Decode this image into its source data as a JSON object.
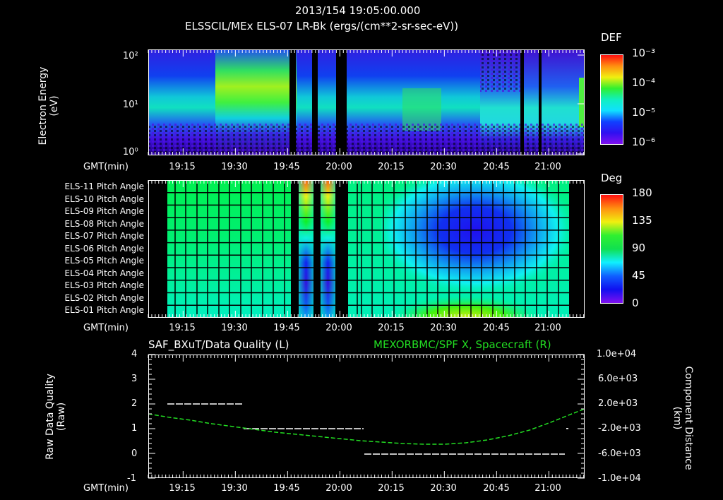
{
  "header": {
    "datetime": "2013/154 19:05:00.000",
    "panel1_title": "ELSSCIL/MEx ELS-07 LR-Bk  (ergs/(cm**2-sr-sec-eV))"
  },
  "panel1": {
    "ylabel": "Electron Energy",
    "yunit": "(eV)",
    "yticks": [
      "10²",
      "10¹",
      "10⁰"
    ],
    "xlabel": "GMT(min)",
    "xticks": [
      "19:15",
      "19:30",
      "19:45",
      "20:00",
      "20:15",
      "20:30",
      "20:45",
      "21:00"
    ],
    "colorbar": {
      "title": "DEF",
      "labels": [
        "10⁻³",
        "10⁻⁴",
        "10⁻⁵",
        "10⁻⁶"
      ]
    }
  },
  "panel2": {
    "rows": [
      "ELS-11 Pitch Angle",
      "ELS-10 Pitch Angle",
      "ELS-09 Pitch Angle",
      "ELS-08 Pitch Angle",
      "ELS-07 Pitch Angle",
      "ELS-06 Pitch Angle",
      "ELS-05 Pitch Angle",
      "ELS-04 Pitch Angle",
      "ELS-03 Pitch Angle",
      "ELS-02 Pitch Angle",
      "ELS-01 Pitch Angle"
    ],
    "xlabel": "GMT(min)",
    "xticks": [
      "19:15",
      "19:30",
      "19:45",
      "20:00",
      "20:15",
      "20:30",
      "20:45",
      "21:00"
    ],
    "colorbar": {
      "title": "Deg",
      "labels": [
        "180",
        "135",
        "90",
        "45",
        "0"
      ]
    }
  },
  "panel3": {
    "left_title": "SAF_BXuT/Data Quality (L)",
    "right_title": "MEXORBMC/SPF X, Spacecraft (R)",
    "right_title_color": "#22dd22",
    "ylabel_left": "Raw Data Quality",
    "yunit_left": "(Raw)",
    "ylabel_right": "Component Distance",
    "yunit_right": "(km)",
    "yticks_left": [
      "4",
      "3",
      "2",
      "1",
      "0",
      "-1"
    ],
    "yticks_right": [
      "1.0e+04",
      "6.0e+03",
      "2.0e+03",
      "-2.0e+03",
      "-6.0e+03",
      "-1.0e+04"
    ],
    "xlabel": "GMT(min)",
    "xticks": [
      "19:15",
      "19:30",
      "19:45",
      "20:00",
      "20:15",
      "20:30",
      "20:45",
      "21:00"
    ]
  },
  "chart_data": [
    {
      "type": "heatmap",
      "title": "ELSSCIL/MEx ELS-07 LR-Bk  (ergs/(cm**2-sr-sec-eV))",
      "xlabel": "GMT(min)",
      "ylabel": "Electron Energy (eV)",
      "yscale": "log",
      "ylim": [
        1,
        150
      ],
      "xlim": [
        "19:05",
        "21:10"
      ],
      "colorbar": {
        "label": "DEF",
        "scale": "log",
        "range": [
          1e-06,
          0.001
        ]
      },
      "data_gaps": [
        [
          "19:46",
          "19:48"
        ],
        [
          "19:52",
          "19:53"
        ],
        [
          "19:58",
          "20:01"
        ],
        [
          "20:53",
          "20:54"
        ],
        [
          "20:58",
          "20:59"
        ]
      ],
      "features": [
        {
          "time": [
            "19:05",
            "19:25"
          ],
          "energy_band_eV": [
            5,
            20
          ],
          "level": "~3e-5"
        },
        {
          "time": [
            "19:25",
            "19:46"
          ],
          "energy_band_eV": [
            10,
            60
          ],
          "level": "~1e-4"
        },
        {
          "time": [
            "20:20",
            "20:30"
          ],
          "energy_band_eV": [
            4,
            15
          ],
          "level": "~5e-5"
        },
        {
          "time": [
            "20:45",
            "21:10"
          ],
          "energy_band_eV": [
            4,
            20
          ],
          "level": "~2e-5"
        }
      ]
    },
    {
      "type": "heatmap",
      "title": "ELS Pitch Angle",
      "xlabel": "GMT(min)",
      "categories": [
        "ELS-11",
        "ELS-10",
        "ELS-09",
        "ELS-08",
        "ELS-07",
        "ELS-06",
        "ELS-05",
        "ELS-04",
        "ELS-03",
        "ELS-02",
        "ELS-01"
      ],
      "colorbar": {
        "label": "Deg",
        "range": [
          0,
          180
        ]
      },
      "xlim": [
        "19:05",
        "21:10"
      ],
      "data_gaps": [
        [
          "19:05",
          "19:10"
        ],
        [
          "19:46",
          "19:48"
        ],
        [
          "19:53",
          "19:54"
        ],
        [
          "19:58",
          "20:02"
        ],
        [
          "21:06",
          "21:10"
        ]
      ],
      "values_deg_approx": {
        "19:10-19:46": [
          100,
          100,
          100,
          98,
          96,
          92,
          88,
          84,
          80,
          78,
          78
        ],
        "19:49-19:52": [
          170,
          150,
          120,
          100,
          70,
          40,
          20,
          15,
          20,
          40,
          60
        ],
        "19:55-19:58": [
          170,
          150,
          120,
          100,
          70,
          40,
          20,
          15,
          20,
          40,
          60
        ],
        "20:02-20:20": [
          100,
          100,
          100,
          95,
          92,
          90,
          88,
          85,
          82,
          84,
          85
        ],
        "20:30-20:45": [
          75,
          55,
          30,
          15,
          10,
          12,
          30,
          55,
          85,
          110,
          125
        ],
        "20:55-21:05": [
          95,
          90,
          70,
          55,
          50,
          55,
          70,
          80,
          85,
          90,
          95
        ]
      }
    },
    {
      "type": "line",
      "title": "SAF_BXuT/Data Quality (L) / MEXORBMC/SPF X, Spacecraft (R)",
      "xlabel": "GMT(min)",
      "series": [
        {
          "name": "SAF_BXuT/Data Quality (L)",
          "axis": "left",
          "color": "#ffffff",
          "x": [
            "19:11",
            "19:32",
            "19:32",
            "20:07",
            "20:07",
            "21:03"
          ],
          "y": [
            2,
            2,
            1,
            1,
            0,
            0
          ]
        },
        {
          "name": "MEXORBMC/SPF X, Spacecraft (R)",
          "axis": "right",
          "color": "#22dd22",
          "x": [
            "19:05",
            "19:15",
            "19:30",
            "19:45",
            "20:00",
            "20:15",
            "20:30",
            "20:45",
            "21:00",
            "21:10"
          ],
          "y": [
            2100,
            1100,
            -200,
            -1500,
            -2800,
            -3700,
            -3900,
            -2800,
            -100,
            2700
          ]
        }
      ],
      "ylim_left": [
        -1,
        4
      ],
      "ylim_right": [
        -10000,
        10000
      ]
    }
  ]
}
